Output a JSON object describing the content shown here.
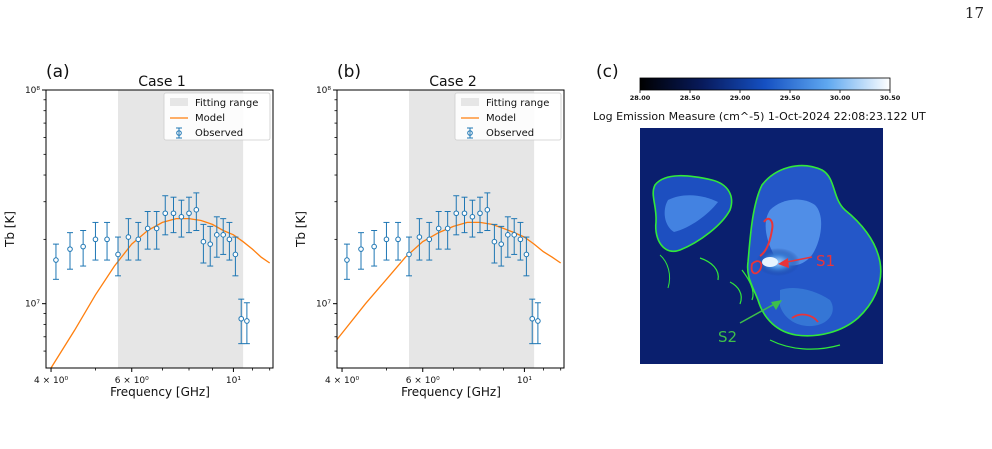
{
  "page_number": "17",
  "chart_data": [
    {
      "type": "scatter",
      "panel_label": "(a)",
      "title": "Case 1",
      "xlabel": "Frequency [GHz]",
      "ylabel": "Tb [K]",
      "x_scale": "log",
      "y_scale": "log",
      "xlim": [
        3.9,
        12.2
      ],
      "ylim": [
        5000000,
        100000000
      ],
      "x_tick_labels": [
        "4 × 10⁰",
        "6 × 10⁰",
        "10¹"
      ],
      "x_ticks": [
        4,
        6,
        10
      ],
      "y_tick_labels": [
        "10⁷",
        "10⁸"
      ],
      "y_ticks": [
        10000000,
        100000000
      ],
      "fitting_range": [
        5.6,
        10.5
      ],
      "legend": {
        "placement": "top-right",
        "entries": [
          "Fitting range",
          "Model",
          "Observed"
        ]
      },
      "colors": {
        "fitting_range": "#e6e6e6",
        "model": "#ff7f0e",
        "observed": "#1f77b4"
      },
      "observed": {
        "name": "Observed",
        "x": [
          4.1,
          4.4,
          4.7,
          5.0,
          5.3,
          5.6,
          5.9,
          6.2,
          6.5,
          6.8,
          7.1,
          7.4,
          7.7,
          8.0,
          8.3,
          8.6,
          8.9,
          9.2,
          9.5,
          9.8,
          10.1,
          10.4,
          10.7
        ],
        "y": [
          16000000,
          18000000,
          18500000,
          20000000,
          20000000,
          17000000,
          20500000,
          20000000,
          22500000,
          22500000,
          26500000,
          26500000,
          25500000,
          26500000,
          27500000,
          19500000,
          19000000,
          21000000,
          21000000,
          20000000,
          17000000,
          8500000,
          8300000
        ],
        "yerr": [
          3000000,
          3500000,
          3500000,
          4000000,
          4000000,
          3500000,
          4500000,
          4000000,
          4500000,
          4500000,
          5500000,
          5000000,
          5000000,
          5000000,
          5500000,
          4000000,
          4000000,
          4500000,
          4000000,
          4000000,
          3500000,
          2000000,
          1800000
        ]
      },
      "model": {
        "name": "Model",
        "x": [
          4.0,
          4.5,
          5.0,
          5.5,
          6.0,
          6.5,
          7.0,
          7.5,
          8.0,
          8.5,
          9.0,
          9.5,
          10.0,
          10.5,
          11.0,
          11.5,
          12.0
        ],
        "y": [
          4700000,
          7500000,
          11000000,
          15000000,
          19000000,
          22000000,
          24000000,
          25000000,
          25000000,
          24500000,
          23500000,
          22000000,
          21000000,
          19500000,
          18000000,
          16500000,
          15500000
        ]
      }
    },
    {
      "type": "scatter",
      "panel_label": "(b)",
      "title": "Case 2",
      "xlabel": "Frequency [GHz]",
      "ylabel": "Tb [K]",
      "x_scale": "log",
      "y_scale": "log",
      "xlim": [
        3.9,
        12.2
      ],
      "ylim": [
        5000000,
        100000000
      ],
      "x_tick_labels": [
        "4 × 10⁰",
        "6 × 10⁰",
        "10¹"
      ],
      "x_ticks": [
        4,
        6,
        10
      ],
      "y_tick_labels": [
        "10⁷",
        "10⁸"
      ],
      "y_ticks": [
        10000000,
        100000000
      ],
      "fitting_range": [
        5.6,
        10.5
      ],
      "legend": {
        "placement": "top-right",
        "entries": [
          "Fitting range",
          "Model",
          "Observed"
        ]
      },
      "colors": {
        "fitting_range": "#e6e6e6",
        "model": "#ff7f0e",
        "observed": "#1f77b4"
      },
      "observed": {
        "name": "Observed",
        "x": [
          4.1,
          4.4,
          4.7,
          5.0,
          5.3,
          5.6,
          5.9,
          6.2,
          6.5,
          6.8,
          7.1,
          7.4,
          7.7,
          8.0,
          8.3,
          8.6,
          8.9,
          9.2,
          9.5,
          9.8,
          10.1,
          10.4,
          10.7
        ],
        "y": [
          16000000,
          18000000,
          18500000,
          20000000,
          20000000,
          17000000,
          20500000,
          20000000,
          22500000,
          22500000,
          26500000,
          26500000,
          25500000,
          26500000,
          27500000,
          19500000,
          19000000,
          21000000,
          21000000,
          20000000,
          17000000,
          8500000,
          8300000
        ],
        "yerr": [
          3000000,
          3500000,
          3500000,
          4000000,
          4000000,
          3500000,
          4500000,
          4000000,
          4500000,
          4500000,
          5500000,
          5000000,
          5000000,
          5000000,
          5500000,
          4000000,
          4000000,
          4500000,
          4000000,
          4000000,
          3500000,
          2000000,
          1800000
        ]
      },
      "model": {
        "name": "Model",
        "x": [
          3.9,
          4.5,
          5.0,
          5.5,
          6.0,
          6.5,
          7.0,
          7.5,
          8.0,
          8.5,
          9.0,
          9.5,
          10.0,
          10.5,
          11.0,
          11.5,
          12.0
        ],
        "y": [
          6800000,
          10000000,
          13000000,
          16500000,
          19500000,
          21500000,
          23000000,
          24000000,
          24000000,
          23500000,
          22500000,
          21500000,
          20500000,
          19000000,
          17500000,
          16500000,
          15500000
        ]
      }
    }
  ],
  "panel_c": {
    "panel_label": "(c)",
    "caption": "Log Emission Measure (cm^-5)  1-Oct-2024 22:08:23.122 UT",
    "colorbar_tick_labels": [
      "28.00",
      "28.50",
      "29.00",
      "29.50",
      "30.00",
      "30.50"
    ],
    "colorbar_range": [
      28.0,
      30.5
    ],
    "annotations": [
      {
        "text": "S1",
        "color": "#e8343a"
      },
      {
        "text": "S2",
        "color": "#3dbf4a"
      }
    ],
    "colors": {
      "contour": "#31e83a",
      "hot_region": "#e8343a",
      "background_map": "#0a2a8a"
    }
  }
}
